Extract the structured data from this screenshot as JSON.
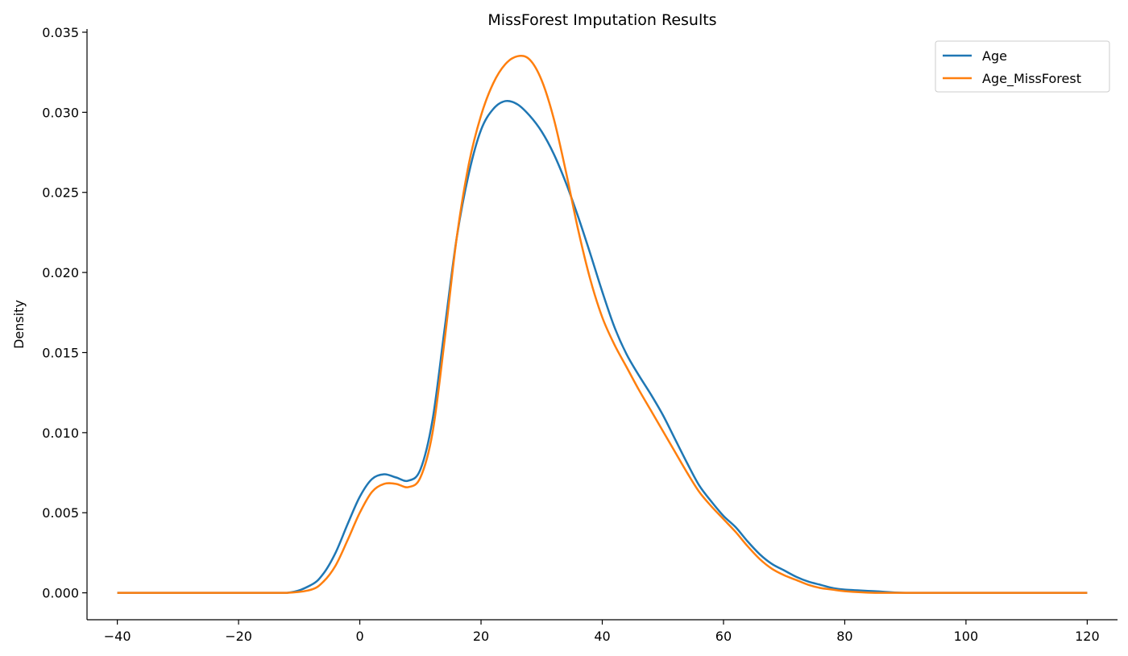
{
  "chart_data": {
    "type": "line",
    "title": "MissForest Imputation Results",
    "xlabel": "",
    "ylabel": "Density",
    "xlim": [
      -45,
      125
    ],
    "ylim": [
      -0.00168,
      0.0352
    ],
    "xticks": [
      -40,
      -20,
      0,
      20,
      40,
      60,
      80,
      100,
      120
    ],
    "xtick_labels": [
      "−40",
      "−20",
      "0",
      "20",
      "40",
      "60",
      "80",
      "100",
      "120"
    ],
    "yticks": [
      0.0,
      0.005,
      0.01,
      0.015,
      0.02,
      0.025,
      0.03,
      0.035
    ],
    "ytick_labels": [
      "0.000",
      "0.005",
      "0.010",
      "0.015",
      "0.020",
      "0.025",
      "0.030",
      "0.035"
    ],
    "grid": false,
    "legend_position": "top-right",
    "series": [
      {
        "name": "Age",
        "color": "#1f77b4",
        "x": [
          -40,
          -20,
          -12,
          -8,
          -6,
          -4,
          -2,
          0,
          2,
          4,
          6,
          8,
          10,
          12,
          14,
          16,
          18,
          20,
          22,
          24,
          26,
          28,
          30,
          32,
          34,
          36,
          38,
          40,
          42,
          44,
          46,
          48,
          50,
          52,
          54,
          56,
          58,
          60,
          62,
          64,
          66,
          68,
          70,
          72,
          74,
          76,
          78,
          80,
          85,
          90,
          100,
          120
        ],
        "y": [
          0.0,
          0.0,
          0.0,
          0.0005,
          0.0012,
          0.0025,
          0.0043,
          0.006,
          0.0071,
          0.0074,
          0.0072,
          0.007,
          0.0077,
          0.0108,
          0.0165,
          0.0222,
          0.0262,
          0.0289,
          0.0302,
          0.0307,
          0.0305,
          0.0298,
          0.0288,
          0.0274,
          0.0256,
          0.0235,
          0.0212,
          0.0188,
          0.0166,
          0.0149,
          0.0136,
          0.0124,
          0.0111,
          0.0096,
          0.0081,
          0.0067,
          0.0057,
          0.0048,
          0.0041,
          0.0032,
          0.0024,
          0.0018,
          0.0014,
          0.001,
          0.0007,
          0.0005,
          0.0003,
          0.0002,
          0.0001,
          0.0,
          0.0,
          0.0
        ]
      },
      {
        "name": "Age_MissForest",
        "color": "#ff7f0e",
        "x": [
          -40,
          -20,
          -12,
          -8,
          -6,
          -4,
          -2,
          0,
          2,
          4,
          6,
          8,
          10,
          12,
          14,
          16,
          18,
          20,
          22,
          24,
          26,
          28,
          30,
          32,
          34,
          36,
          38,
          40,
          42,
          44,
          46,
          48,
          50,
          52,
          54,
          56,
          58,
          60,
          62,
          64,
          66,
          68,
          70,
          72,
          74,
          76,
          78,
          80,
          85,
          90,
          100,
          120
        ],
        "y": [
          0.0,
          0.0,
          0.0,
          0.0002,
          0.0007,
          0.0017,
          0.0033,
          0.005,
          0.0063,
          0.0068,
          0.0068,
          0.0066,
          0.0072,
          0.01,
          0.0158,
          0.0222,
          0.0268,
          0.0298,
          0.0318,
          0.033,
          0.0335,
          0.0333,
          0.032,
          0.0296,
          0.0263,
          0.0227,
          0.0196,
          0.0172,
          0.0155,
          0.0141,
          0.0127,
          0.0114,
          0.0101,
          0.0088,
          0.0075,
          0.0063,
          0.0054,
          0.0046,
          0.0038,
          0.0029,
          0.0021,
          0.0015,
          0.0011,
          0.0008,
          0.0005,
          0.0003,
          0.0002,
          0.0001,
          0.0,
          0.0,
          0.0,
          0.0
        ]
      }
    ]
  }
}
